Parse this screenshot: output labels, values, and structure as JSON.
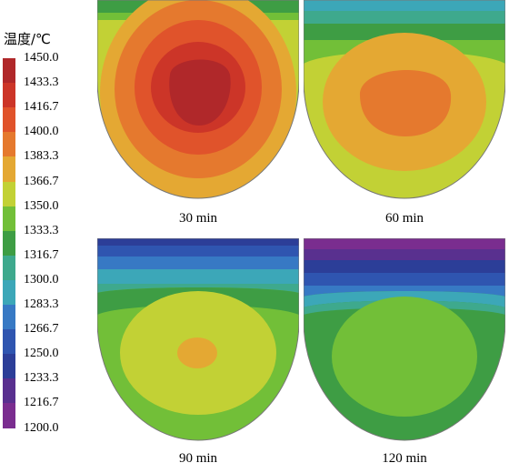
{
  "legend": {
    "title": "温度/℃",
    "levels": [
      {
        "label": "1450.0",
        "color": "#b0282a"
      },
      {
        "label": "1433.3",
        "color": "#cc3528"
      },
      {
        "label": "1416.7",
        "color": "#e0532b"
      },
      {
        "label": "1400.0",
        "color": "#e5792e"
      },
      {
        "label": "1383.3",
        "color": "#e4a833"
      },
      {
        "label": "1366.7",
        "color": "#c2d135"
      },
      {
        "label": "1350.0",
        "color": "#72bf38"
      },
      {
        "label": "1333.3",
        "color": "#3e9d44"
      },
      {
        "label": "1316.7",
        "color": "#3ea98d"
      },
      {
        "label": "1300.0",
        "color": "#3ca7b8"
      },
      {
        "label": "1283.3",
        "color": "#3779c4"
      },
      {
        "label": "1266.7",
        "color": "#2f55b0"
      },
      {
        "label": "1250.0",
        "color": "#2c3e98"
      },
      {
        "label": "1233.3",
        "color": "#59308f"
      },
      {
        "label": "1216.7",
        "color": "#7a2d8f"
      },
      {
        "label": "1200.0",
        "color": "#a23391"
      }
    ]
  },
  "panels": [
    {
      "caption": "30 min"
    },
    {
      "caption": "60 min"
    },
    {
      "caption": "90 min"
    },
    {
      "caption": "120 min"
    }
  ]
}
